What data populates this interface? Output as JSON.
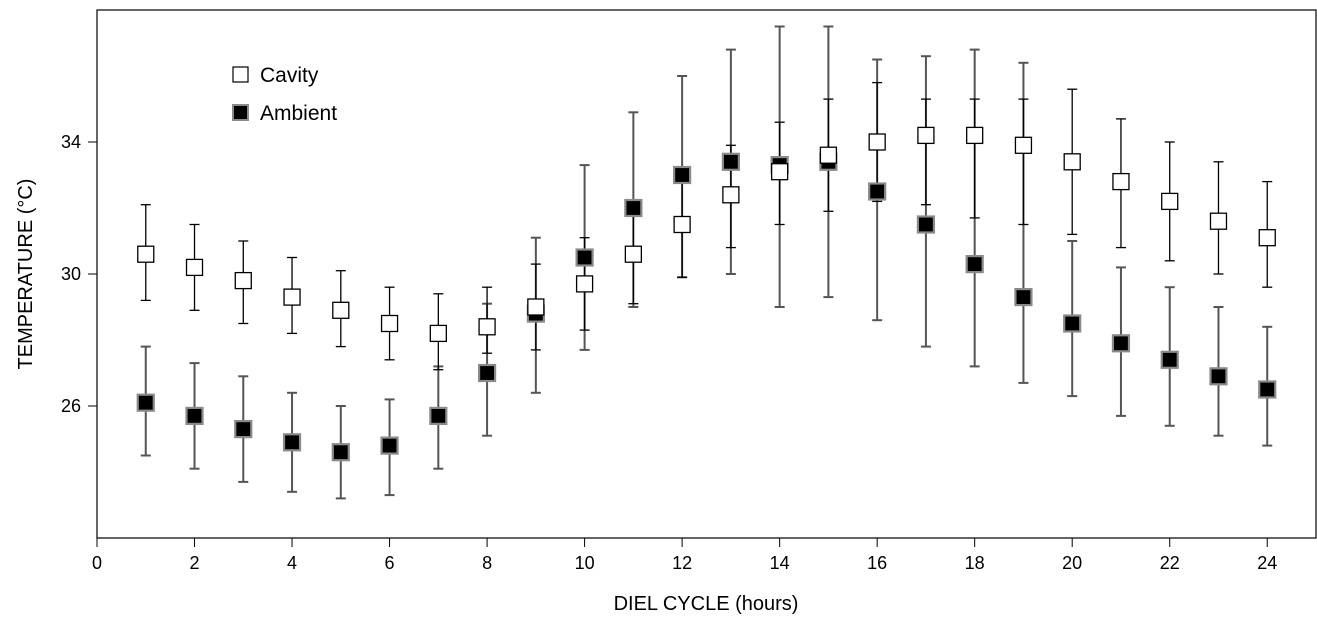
{
  "chart_data": {
    "type": "scatter",
    "xlabel": "DIEL CYCLE (hours)",
    "ylabel": "TEMPERATURE (°C)",
    "xlim": [
      0,
      25
    ],
    "ylim": [
      22,
      38
    ],
    "xticks": [
      0,
      2,
      4,
      6,
      8,
      10,
      12,
      14,
      16,
      18,
      20,
      22,
      24
    ],
    "yticks": [
      26,
      30,
      34
    ],
    "grid": false,
    "legend_position": "top-left",
    "series": [
      {
        "name": "Cavity",
        "marker": "open-square",
        "x": [
          1,
          2,
          3,
          4,
          5,
          6,
          7,
          8,
          9,
          10,
          11,
          12,
          13,
          14,
          15,
          16,
          17,
          18,
          19,
          20,
          21,
          22,
          23,
          24
        ],
        "y": [
          30.6,
          30.2,
          29.8,
          29.3,
          28.9,
          28.5,
          28.2,
          28.4,
          29.0,
          29.7,
          30.6,
          31.5,
          32.4,
          33.1,
          33.6,
          34.0,
          34.2,
          34.2,
          33.9,
          33.4,
          32.8,
          32.2,
          31.6,
          31.1
        ],
        "err_low": [
          29.2,
          28.9,
          28.5,
          28.2,
          27.8,
          27.4,
          27.1,
          27.6,
          27.7,
          28.3,
          29.1,
          29.9,
          30.8,
          31.5,
          31.9,
          32.2,
          32.1,
          31.7,
          31.5,
          31.2,
          30.8,
          30.4,
          30.0,
          29.6
        ],
        "err_high": [
          32.1,
          31.5,
          31.0,
          30.5,
          30.1,
          29.6,
          29.4,
          29.6,
          30.3,
          31.1,
          32.2,
          33.1,
          33.9,
          34.6,
          35.3,
          35.8,
          35.3,
          35.3,
          35.3,
          35.6,
          34.7,
          34.0,
          33.4,
          32.8
        ]
      },
      {
        "name": "Ambient",
        "marker": "filled-square",
        "x": [
          1,
          2,
          3,
          4,
          5,
          6,
          7,
          8,
          9,
          10,
          11,
          12,
          13,
          14,
          15,
          16,
          17,
          18,
          19,
          20,
          21,
          22,
          23,
          24
        ],
        "y": [
          26.1,
          25.7,
          25.3,
          24.9,
          24.6,
          24.8,
          25.7,
          27.0,
          28.8,
          30.5,
          32.0,
          33.0,
          33.4,
          33.3,
          33.4,
          32.5,
          31.5,
          30.3,
          29.3,
          28.5,
          27.9,
          27.4,
          26.9,
          26.5
        ],
        "err_low": [
          24.5,
          24.1,
          23.7,
          23.4,
          23.2,
          23.3,
          24.1,
          25.1,
          26.4,
          27.7,
          29.0,
          29.9,
          30.0,
          29.0,
          29.3,
          28.6,
          27.8,
          27.2,
          26.7,
          26.3,
          25.7,
          25.4,
          25.1,
          24.8
        ],
        "err_high": [
          27.8,
          27.3,
          26.9,
          26.4,
          26.0,
          26.2,
          27.2,
          29.1,
          31.1,
          33.3,
          34.9,
          36.0,
          36.8,
          37.5,
          37.5,
          36.5,
          36.6,
          36.8,
          36.4,
          31.0,
          30.2,
          29.6,
          29.0,
          28.4
        ]
      }
    ]
  }
}
